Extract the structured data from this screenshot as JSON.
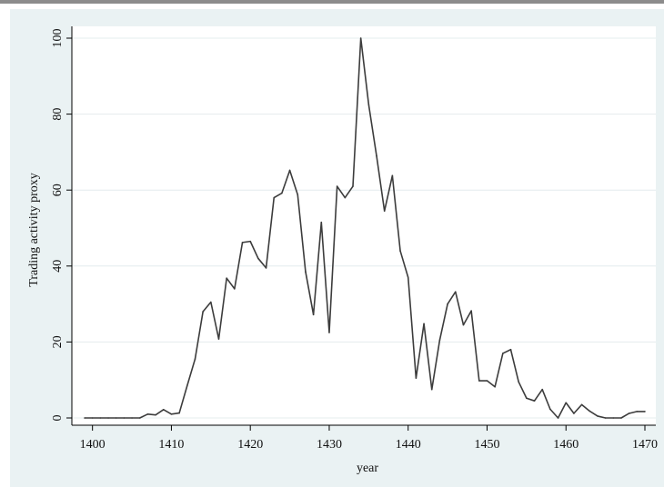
{
  "chart_data": {
    "type": "line",
    "title": "",
    "xlabel": "year",
    "ylabel": "Trading activity proxy",
    "xlim": [
      1399,
      1470
    ],
    "ylim": [
      0,
      100
    ],
    "xticks": [
      1400,
      1410,
      1420,
      1430,
      1440,
      1450,
      1460,
      1470
    ],
    "yticks": [
      0,
      20,
      40,
      60,
      80,
      100
    ],
    "grid": true,
    "legend": "none",
    "colors": {
      "line": "#3c3c3c",
      "grid": "#e4eced",
      "plot_bg": "#ffffff",
      "panel_bg": "#eaf2f3",
      "axis": "#000000"
    },
    "series": [
      {
        "x": [
          1399,
          1400,
          1401,
          1402,
          1403,
          1404,
          1405,
          1406,
          1407,
          1408,
          1409,
          1410,
          1411,
          1412,
          1413,
          1414,
          1415,
          1416,
          1417,
          1418,
          1419,
          1420,
          1421,
          1422,
          1423,
          1424,
          1425,
          1426,
          1427,
          1428,
          1429,
          1430,
          1431,
          1432,
          1433,
          1434,
          1435,
          1436,
          1437,
          1438,
          1439,
          1440,
          1441,
          1442,
          1443,
          1444,
          1445,
          1446,
          1447,
          1448,
          1449,
          1450,
          1451,
          1452,
          1453,
          1454,
          1455,
          1456,
          1457,
          1458,
          1459,
          1460,
          1461,
          1462,
          1463,
          1464,
          1465,
          1466,
          1467,
          1468,
          1469,
          1470
        ],
        "y": [
          0,
          0,
          0,
          0,
          0,
          0,
          0,
          0,
          1,
          0.8,
          2.2,
          1,
          1.3,
          8.5,
          15.5,
          28,
          30.5,
          20.8,
          36.8,
          34,
          46.2,
          46.5,
          42,
          39.5,
          58,
          59.2,
          65.2,
          58.8,
          38.5,
          27.2,
          51.5,
          22.5,
          61,
          58,
          61,
          100,
          82.5,
          69,
          54.5,
          63.8,
          44,
          37,
          10.5,
          24.8,
          7.5,
          20.5,
          30,
          33.2,
          24.5,
          28.2,
          9.8,
          9.8,
          8.2,
          17,
          18,
          9.5,
          5.2,
          4.5,
          7.5,
          2.3,
          0,
          4,
          1.2,
          3.5,
          1.8,
          0.5,
          0,
          0,
          0,
          1.2,
          1.7,
          1.7
        ]
      }
    ]
  }
}
